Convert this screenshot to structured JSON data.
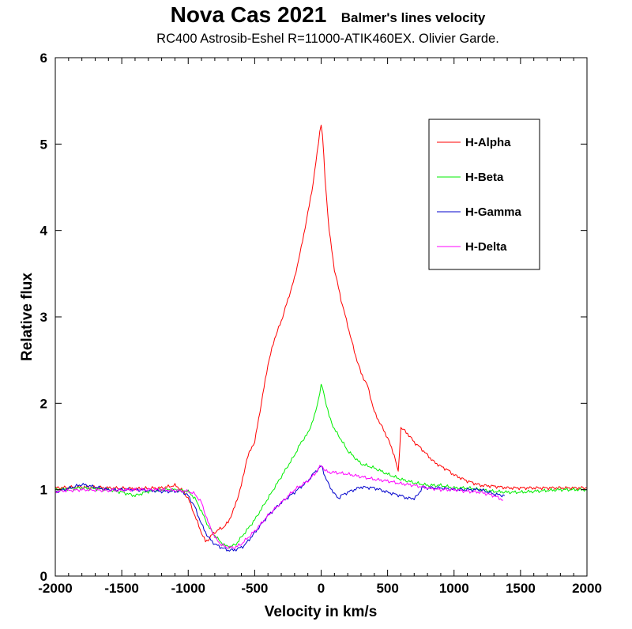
{
  "chart_data": {
    "type": "line",
    "title": "Nova Cas 2021",
    "title_tag": "Balmer's lines velocity",
    "subtitle": "RC400 Astrosib-Eshel R=11000-ATIK460EX. Olivier Garde.",
    "xlabel": "Velocity in km/s",
    "ylabel": "Relative flux",
    "xlim": [
      -2000,
      2000
    ],
    "ylim": [
      0,
      6
    ],
    "xticks": [
      -2000,
      -1500,
      -1000,
      -500,
      0,
      500,
      1000,
      1500,
      2000
    ],
    "yticks": [
      0,
      1,
      2,
      3,
      4,
      5,
      6
    ],
    "xtick_labels": [
      "-2000",
      "-1500",
      "-1000",
      "-500",
      "0",
      "500",
      "1000",
      "1500",
      "2000"
    ],
    "ytick_labels": [
      "0",
      "1",
      "2",
      "3",
      "4",
      "5",
      "6"
    ],
    "grid": false,
    "legend_position": "top-right",
    "series": [
      {
        "name": "H-Alpha",
        "color": "#ff0000",
        "x": [
          -2000,
          -1800,
          -1600,
          -1400,
          -1200,
          -1100,
          -1050,
          -1000,
          -950,
          -900,
          -870,
          -850,
          -820,
          -780,
          -740,
          -700,
          -650,
          -600,
          -560,
          -520,
          -500,
          -450,
          -400,
          -350,
          -300,
          -250,
          -200,
          -150,
          -100,
          -60,
          -30,
          -10,
          0,
          10,
          30,
          60,
          100,
          150,
          200,
          250,
          300,
          350,
          400,
          450,
          500,
          550,
          580,
          600,
          650,
          700,
          750,
          800,
          850,
          900,
          950,
          1000,
          1100,
          1200,
          1300,
          1400,
          1500,
          1600,
          1700,
          1800,
          1900,
          2000
        ],
        "y": [
          1.02,
          1.03,
          1.02,
          1.01,
          1.02,
          1.05,
          1.0,
          0.9,
          0.7,
          0.5,
          0.4,
          0.42,
          0.48,
          0.53,
          0.56,
          0.62,
          0.8,
          1.05,
          1.35,
          1.5,
          1.55,
          2.0,
          2.45,
          2.75,
          2.95,
          3.2,
          3.45,
          3.8,
          4.2,
          4.55,
          4.9,
          5.15,
          5.22,
          5.1,
          4.6,
          4.0,
          3.55,
          3.2,
          2.9,
          2.6,
          2.35,
          2.2,
          1.9,
          1.75,
          1.6,
          1.4,
          1.2,
          1.72,
          1.65,
          1.55,
          1.48,
          1.4,
          1.32,
          1.27,
          1.23,
          1.17,
          1.1,
          1.05,
          1.04,
          1.02,
          1.02,
          1.02,
          1.02,
          1.02,
          1.02,
          1.02
        ]
      },
      {
        "name": "H-Beta",
        "color": "#00ee00",
        "x": [
          -2000,
          -1800,
          -1600,
          -1500,
          -1400,
          -1300,
          -1200,
          -1100,
          -1000,
          -950,
          -900,
          -850,
          -800,
          -760,
          -720,
          -680,
          -640,
          -600,
          -500,
          -400,
          -300,
          -200,
          -150,
          -100,
          -50,
          -20,
          0,
          10,
          30,
          60,
          100,
          150,
          200,
          300,
          400,
          500,
          600,
          700,
          800,
          900,
          1000,
          1100,
          1200,
          1300,
          1400,
          1500,
          1600,
          1700,
          1800,
          1900,
          2000
        ],
        "y": [
          1.0,
          1.02,
          1.0,
          0.97,
          0.93,
          0.98,
          1.0,
          1.0,
          0.98,
          0.9,
          0.75,
          0.58,
          0.47,
          0.4,
          0.35,
          0.34,
          0.37,
          0.45,
          0.65,
          0.9,
          1.15,
          1.4,
          1.55,
          1.65,
          1.85,
          2.05,
          2.2,
          2.18,
          2.05,
          1.85,
          1.7,
          1.58,
          1.45,
          1.3,
          1.25,
          1.18,
          1.12,
          1.08,
          1.05,
          1.05,
          1.02,
          1.02,
          1.0,
          0.98,
          0.97,
          0.97,
          0.98,
          0.99,
          1.0,
          1.0,
          1.0
        ]
      },
      {
        "name": "H-Gamma",
        "color": "#0000cc",
        "x": [
          -2000,
          -1800,
          -1600,
          -1400,
          -1200,
          -1050,
          -1000,
          -950,
          -900,
          -850,
          -800,
          -750,
          -700,
          -660,
          -620,
          -580,
          -500,
          -400,
          -300,
          -200,
          -100,
          -50,
          0,
          10,
          30,
          60,
          100,
          130,
          150,
          200,
          300,
          400,
          500,
          600,
          650,
          700,
          730,
          760,
          800,
          900,
          1000,
          1100,
          1200,
          1300,
          1380
        ],
        "y": [
          0.97,
          1.06,
          1.0,
          1.0,
          0.98,
          0.98,
          0.93,
          0.8,
          0.6,
          0.45,
          0.37,
          0.33,
          0.3,
          0.3,
          0.32,
          0.35,
          0.5,
          0.7,
          0.85,
          0.97,
          1.1,
          1.2,
          1.27,
          1.25,
          1.15,
          1.05,
          0.95,
          0.9,
          0.93,
          0.97,
          1.03,
          1.02,
          0.97,
          0.93,
          0.9,
          0.9,
          0.94,
          1.03,
          1.02,
          1.02,
          1.0,
          1.0,
          1.0,
          0.95,
          0.93
        ]
      },
      {
        "name": "H-Delta",
        "color": "#ff00ff",
        "x": [
          -2000,
          -1800,
          -1600,
          -1400,
          -1200,
          -1000,
          -950,
          -900,
          -850,
          -800,
          -750,
          -700,
          -650,
          -600,
          -500,
          -400,
          -300,
          -200,
          -100,
          -50,
          0,
          10,
          30,
          60,
          100,
          200,
          300,
          400,
          500,
          600,
          700,
          800,
          900,
          1000,
          1100,
          1200,
          1300,
          1370
        ],
        "y": [
          0.98,
          1.0,
          0.99,
          1.0,
          1.0,
          0.98,
          0.95,
          0.85,
          0.62,
          0.45,
          0.36,
          0.33,
          0.33,
          0.37,
          0.52,
          0.7,
          0.85,
          1.0,
          1.1,
          1.18,
          1.28,
          1.27,
          1.22,
          1.2,
          1.2,
          1.18,
          1.15,
          1.12,
          1.1,
          1.07,
          1.05,
          1.02,
          1.0,
          1.0,
          0.98,
          0.97,
          0.93,
          0.88
        ]
      }
    ]
  }
}
